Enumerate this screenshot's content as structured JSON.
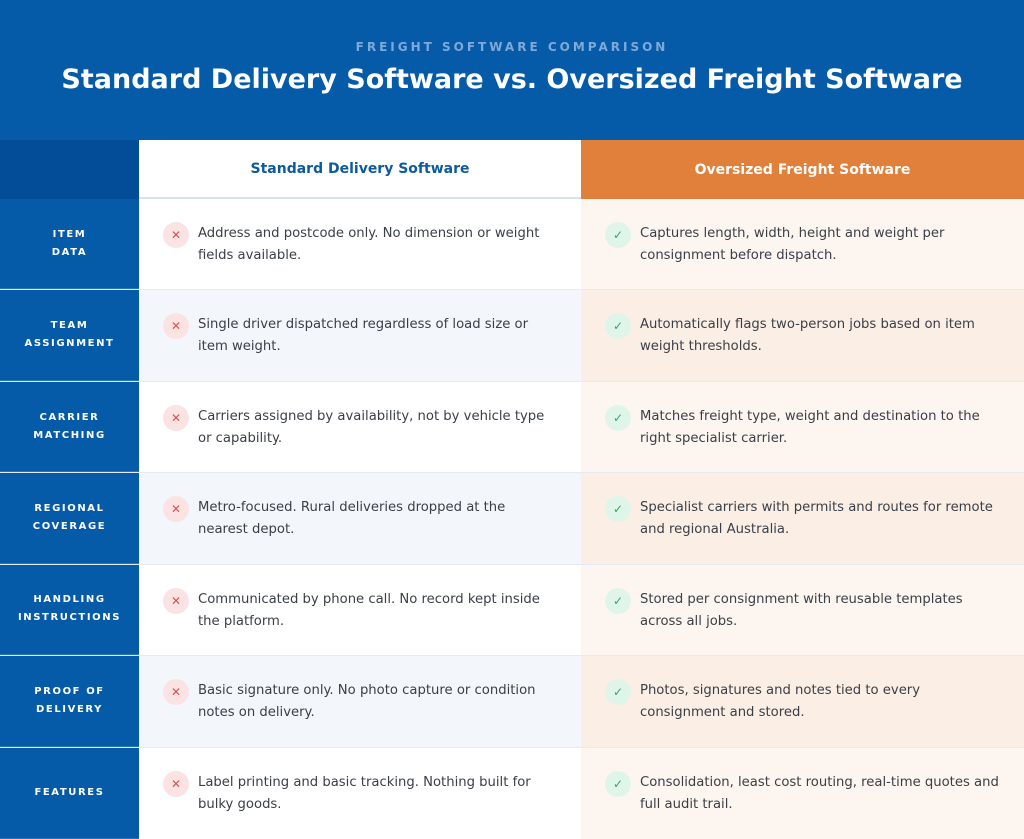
{
  "header": {
    "eyebrow": "FREIGHT SOFTWARE COMPARISON",
    "title": "Standard Delivery Software vs. Oversized Freight Software"
  },
  "columns": {
    "standard": "Standard Delivery Software",
    "oversized": "Oversized Freight Software"
  },
  "icons": {
    "negative": "x-mark-icon",
    "positive": "checkmark-icon",
    "negative_glyph": "✕",
    "positive_glyph": "✓"
  },
  "colors": {
    "header_bg": "#055ba8",
    "oversized_accent": "#e0803a",
    "negative": "#d9534f",
    "positive": "#2fa565"
  },
  "rows": [
    {
      "label": "ITEM\nDATA",
      "standard": "Address and postcode only. No dimension or weight fields available.",
      "oversized": "Captures length, width, height and weight per consignment before dispatch."
    },
    {
      "label": "TEAM\nASSIGNMENT",
      "standard": "Single driver dispatched regardless of load size or item weight.",
      "oversized": "Automatically flags two-person jobs based on item weight thresholds."
    },
    {
      "label": "CARRIER\nMATCHING",
      "standard": "Carriers assigned by availability, not by vehicle type or capability.",
      "oversized": "Matches freight type, weight and destination to the right specialist carrier."
    },
    {
      "label": "REGIONAL\nCOVERAGE",
      "standard": "Metro-focused. Rural deliveries dropped at the nearest depot.",
      "oversized": "Specialist carriers with permits and routes for remote and regional Australia."
    },
    {
      "label": "HANDLING\nINSTRUCTIONS",
      "standard": "Communicated by phone call. No record kept inside the platform.",
      "oversized": "Stored per consignment with reusable templates across all jobs."
    },
    {
      "label": "PROOF OF\nDELIVERY",
      "standard": "Basic signature only. No photo capture or condition notes on delivery.",
      "oversized": "Photos, signatures and notes tied to every consignment and stored."
    },
    {
      "label": "FEATURES",
      "standard": "Label printing and basic tracking. Nothing built for bulky goods.",
      "oversized": "Consolidation, least cost routing, real-time quotes and full audit trail."
    }
  ]
}
